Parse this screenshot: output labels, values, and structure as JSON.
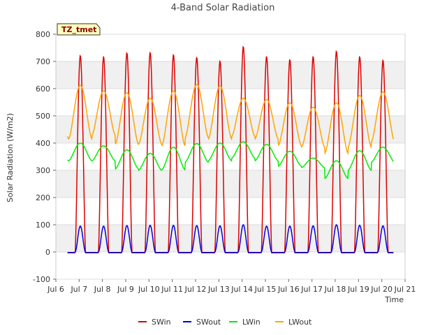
{
  "chart_data": {
    "type": "line",
    "title": "4-Band Solar Radiation",
    "xlabel": "Time",
    "ylabel": "Solar Radiation (W/m2)",
    "site_label": "TZ_tmet",
    "xlim": [
      6,
      21
    ],
    "ylim": [
      -100,
      800
    ],
    "x_ticks": [
      6,
      7,
      8,
      9,
      10,
      11,
      12,
      13,
      14,
      15,
      16,
      17,
      18,
      19,
      20,
      21
    ],
    "x_tick_labels": [
      "Jul 6",
      "Jul 7",
      "Jul 8",
      "Jul 9",
      "Jul 10",
      "Jul 11",
      "Jul 12",
      "Jul 13",
      "Jul 14",
      "Jul 15",
      "Jul 16",
      "Jul 17",
      "Jul 18",
      "Jul 19",
      "Jul 20",
      "Jul 21"
    ],
    "y_ticks": [
      -100,
      0,
      100,
      200,
      300,
      400,
      500,
      600,
      700,
      800
    ],
    "grid": true,
    "legend_position": "bottom",
    "x_range_data": [
      6.5,
      20.5
    ],
    "series": [
      {
        "name": "SWin",
        "color": "#dd0000",
        "peaks": [
          722,
          718,
          732,
          733,
          725,
          715,
          702,
          755,
          718,
          707,
          718,
          738,
          718,
          705
        ]
      },
      {
        "name": "SWout",
        "color": "#0000dd",
        "peaks": [
          95,
          95,
          97,
          98,
          98,
          97,
          96,
          100,
          95,
          95,
          96,
          100,
          98,
          96
        ]
      },
      {
        "name": "LWin",
        "color": "#00ee00",
        "day_max": [
          400,
          390,
          375,
          362,
          385,
          398,
          400,
          405,
          395,
          370,
          345,
          335,
          372,
          385
        ],
        "night_min": [
          335,
          335,
          305,
          300,
          302,
          330,
          335,
          345,
          335,
          315,
          310,
          270,
          300,
          330
        ]
      },
      {
        "name": "LWout",
        "color": "#ffa500",
        "day_max": [
          612,
          592,
          585,
          565,
          592,
          615,
          610,
          565,
          560,
          548,
          532,
          548,
          575,
          588
        ],
        "night_min": [
          415,
          430,
          395,
          395,
          390,
          420,
          415,
          425,
          415,
          390,
          385,
          362,
          385,
          405
        ]
      }
    ]
  }
}
